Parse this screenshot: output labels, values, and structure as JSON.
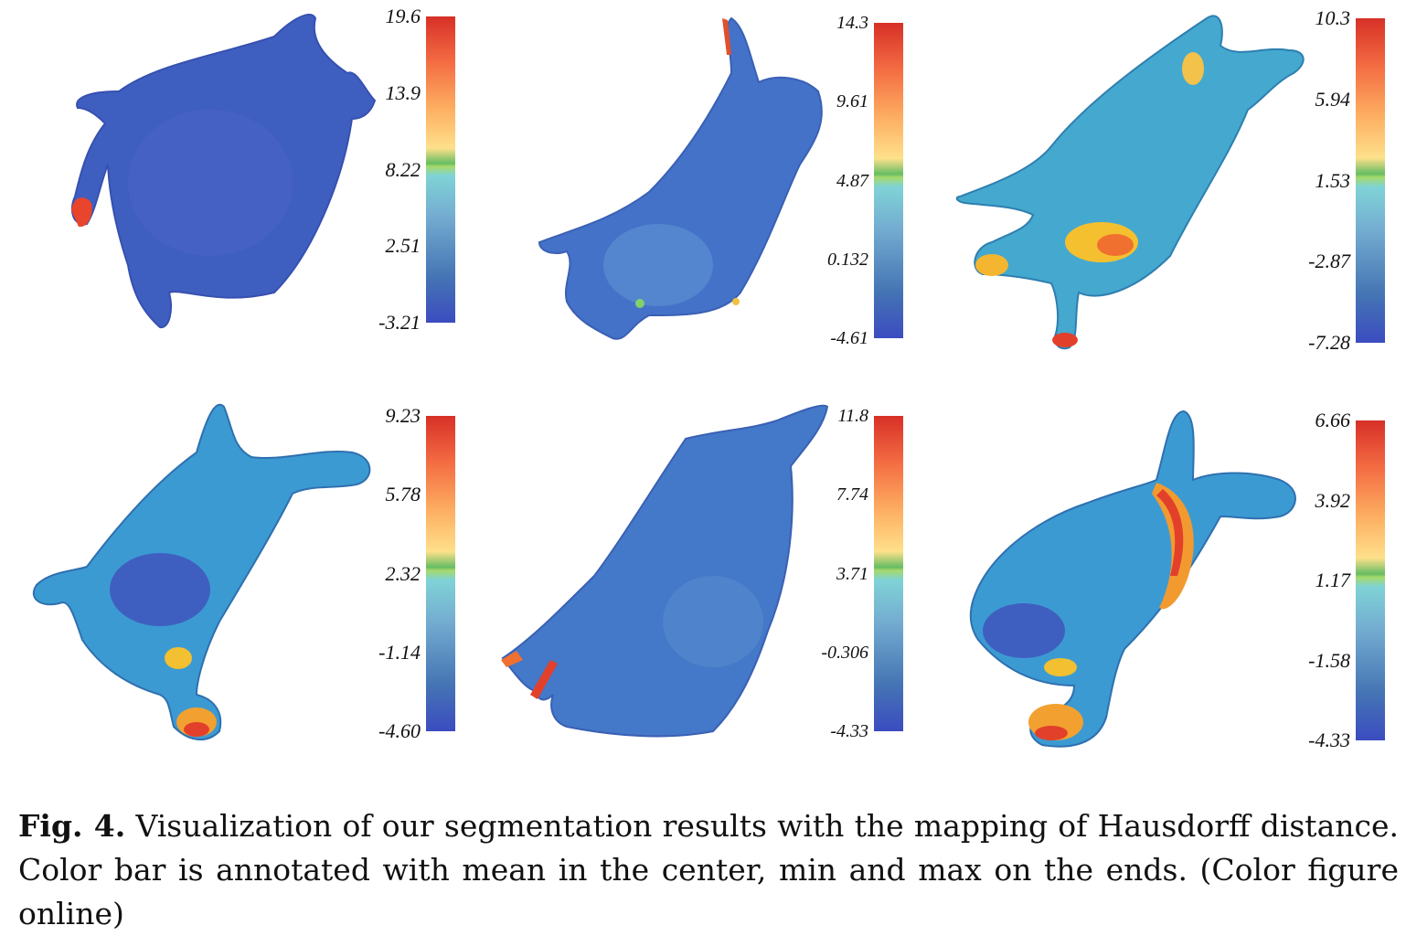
{
  "panels": [
    {
      "ticks": [
        "19.6",
        "13.9",
        "8.22",
        "2.51",
        "-3.21"
      ]
    },
    {
      "ticks": [
        "14.3",
        "9.61",
        "4.87",
        "0.132",
        "-4.61"
      ]
    },
    {
      "ticks": [
        "10.3",
        "5.94",
        "1.53",
        "-2.87",
        "-7.28"
      ]
    },
    {
      "ticks": [
        "9.23",
        "5.78",
        "2.32",
        "-1.14",
        "-4.60"
      ]
    },
    {
      "ticks": [
        "11.8",
        "7.74",
        "3.71",
        "-0.306",
        "-4.33"
      ]
    },
    {
      "ticks": [
        "6.66",
        "3.92",
        "1.17",
        "-1.58",
        "-4.33"
      ]
    }
  ],
  "caption": {
    "label": "Fig. 4.",
    "text": "Visualization of our segmentation results with the mapping of Hausdorff distance. Color bar is annotated with mean in the center, min and max on the ends. (Color figure online)"
  },
  "colors": {
    "low": "#3b4cc0",
    "mean": "#66bd63",
    "high": "#d73027"
  }
}
